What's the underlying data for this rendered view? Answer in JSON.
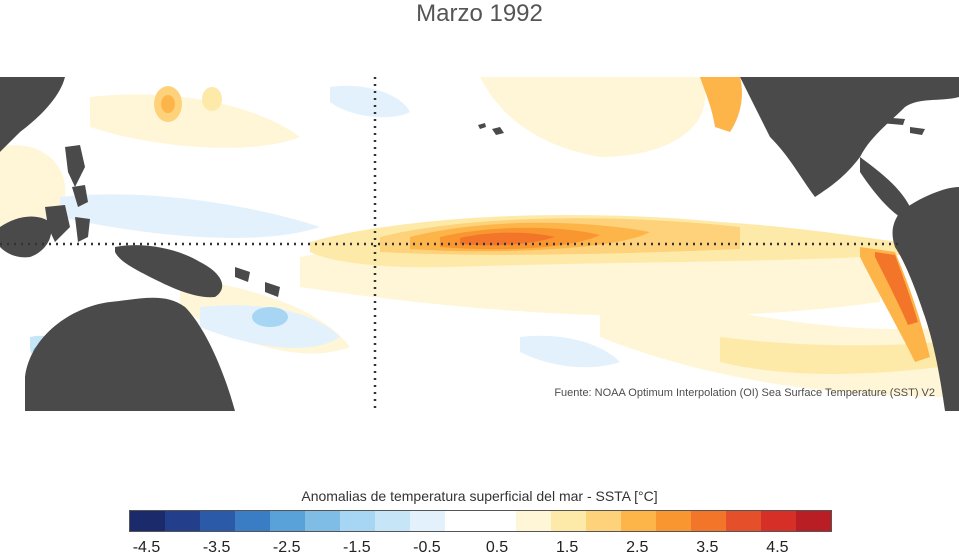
{
  "title": "Marzo 1992",
  "source": "Fuente: NOAA Optimum Interpolation (OI) Sea Surface Temperature (SST) V2",
  "colorbar": {
    "label": "Anomalias de temperatura superficial del mar - SSTA  [°C]",
    "colors": [
      "#1b2a6b",
      "#233f8c",
      "#2a5aa8",
      "#3b7dc4",
      "#58a2d9",
      "#7fbde7",
      "#a6d6f3",
      "#c6e6f8",
      "#e2f1fb",
      "#ffffff",
      "#ffffff",
      "#fff6d8",
      "#feeaa8",
      "#fdd27a",
      "#fdb54a",
      "#f99630",
      "#f2752a",
      "#e5502a",
      "#d62f27",
      "#b81e23"
    ],
    "ticks": [
      "-4.5",
      "-3.5",
      "-2.5",
      "-1.5",
      "-0.5",
      "0.5",
      "1.5",
      "2.5",
      "3.5",
      "4.5"
    ]
  },
  "map": {
    "land_color": "#4a4a4a",
    "dashed_lines": "equator and meridian"
  }
}
